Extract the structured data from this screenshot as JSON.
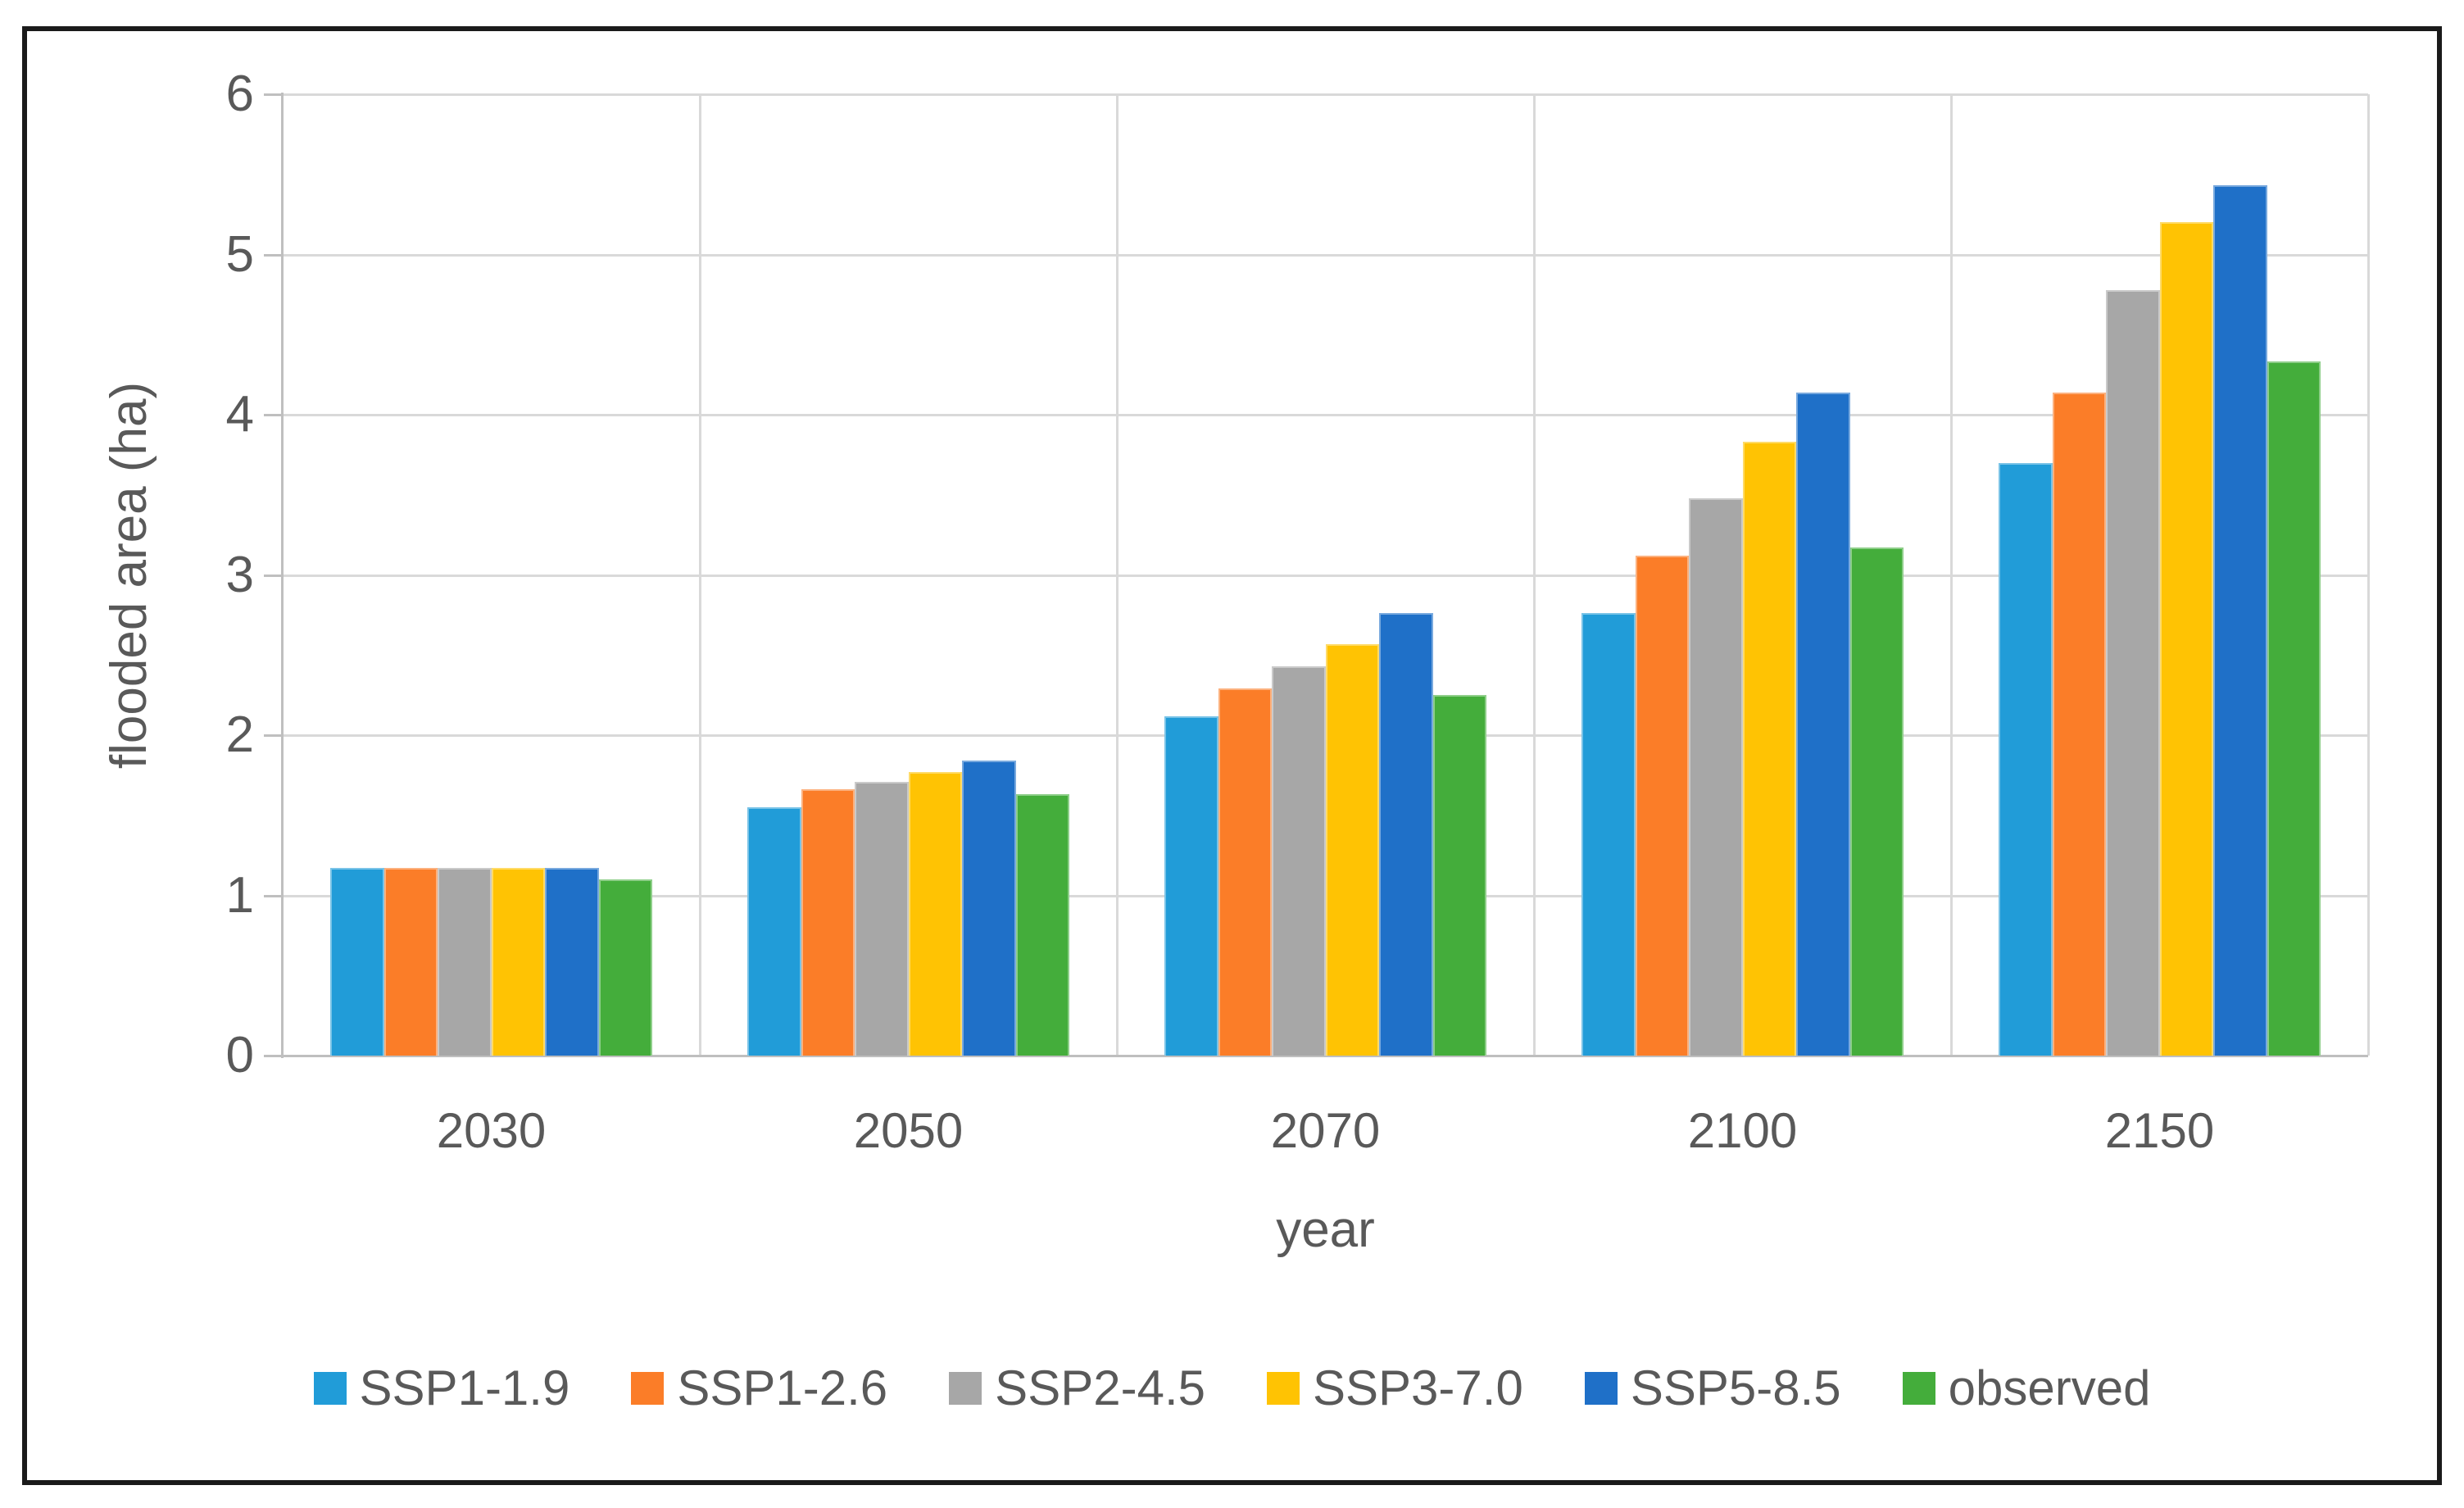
{
  "chart_data": {
    "type": "bar",
    "title": "",
    "categories": [
      "2030",
      "2050",
      "2070",
      "2100",
      "2150"
    ],
    "series": [
      {
        "name": "SSP1-1.9",
        "color": "#219CD8",
        "values": [
          1.17,
          1.55,
          2.12,
          2.76,
          3.7
        ]
      },
      {
        "name": "SSP1-2.6",
        "color": "#FB7D28",
        "values": [
          1.17,
          1.66,
          2.29,
          3.12,
          4.14
        ]
      },
      {
        "name": "SSP2-4.5",
        "color": "#A7A7A7",
        "values": [
          1.17,
          1.71,
          2.43,
          3.48,
          4.78
        ]
      },
      {
        "name": "SSP3-7.0",
        "color": "#FFC303",
        "values": [
          1.17,
          1.77,
          2.57,
          3.83,
          5.2
        ]
      },
      {
        "name": "SSP5-8.5",
        "color": "#1F70C8",
        "values": [
          1.17,
          1.84,
          2.76,
          4.14,
          5.43
        ]
      },
      {
        "name": "observed",
        "color": "#44AD3B",
        "values": [
          1.1,
          1.63,
          2.25,
          3.17,
          4.33
        ]
      }
    ],
    "xlabel": "year",
    "ylabel": "flooded area (ha)",
    "ylim": [
      0,
      6
    ],
    "ytick_step": 1,
    "yticks": [
      "0",
      "1",
      "2",
      "3",
      "4",
      "5",
      "6"
    ],
    "grid": true,
    "legend_position": "bottom",
    "legend_entries": [
      "SSP1-1.9",
      "SSP1-2.6",
      "SSP2-4.5",
      "SSP3-7.0",
      "SSP5-8.5",
      "observed"
    ]
  },
  "styles": {
    "background": "#FFFFFF",
    "frame_border": "#1A1A1A",
    "gridline": "#D9D9D9",
    "axis_line": "#BFBFBF",
    "text": "#595959"
  }
}
